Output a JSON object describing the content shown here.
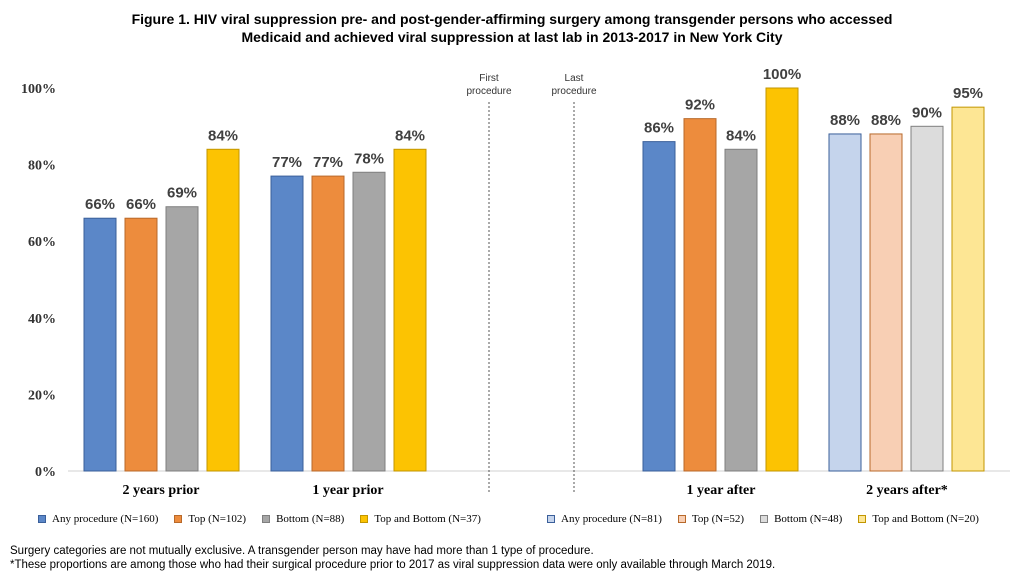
{
  "title_line1": "Figure 1. HIV viral suppression pre- and post-gender-affirming surgery among transgender persons who accessed",
  "title_line2": "Medicaid and achieved viral suppression at last lab in 2013-2017 in New York City",
  "chart_data": {
    "type": "bar",
    "title": "Figure 1. HIV viral suppression pre- and post-gender-affirming surgery among transgender persons who accessed Medicaid and achieved viral suppression at last lab in 2013-2017 in New York City",
    "xlabel": "",
    "ylabel": "",
    "ylim": [
      0,
      100
    ],
    "yticks": [
      "0%",
      "20%",
      "40%",
      "60%",
      "80%",
      "100%"
    ],
    "categories": [
      "2 years prior",
      "1 year prior",
      "1 year after",
      "2 years after*"
    ],
    "series_names": [
      "Any procedure",
      "Top",
      "Bottom",
      "Top and Bottom"
    ],
    "groups": [
      {
        "category": "2 years prior",
        "values": [
          66,
          66,
          69,
          84
        ],
        "labels": [
          "66%",
          "66%",
          "69%",
          "84%"
        ],
        "colors": [
          "#5b87c8",
          "#ed8c3d",
          "#a6a6a6",
          "#fcc302"
        ],
        "borders": [
          "#3a5f9a",
          "#b8692a",
          "#7f7f7f",
          "#c29600"
        ]
      },
      {
        "category": "1 year prior",
        "values": [
          77,
          77,
          78,
          84
        ],
        "labels": [
          "77%",
          "77%",
          "78%",
          "84%"
        ],
        "colors": [
          "#5b87c8",
          "#ed8c3d",
          "#a6a6a6",
          "#fcc302"
        ],
        "borders": [
          "#3a5f9a",
          "#b8692a",
          "#7f7f7f",
          "#c29600"
        ]
      },
      {
        "category": "1 year after",
        "values": [
          86,
          92,
          84,
          100
        ],
        "labels": [
          "86%",
          "92%",
          "84%",
          "100%"
        ],
        "colors": [
          "#5b87c8",
          "#ed8c3d",
          "#a6a6a6",
          "#fcc302"
        ],
        "borders": [
          "#3a5f9a",
          "#b8692a",
          "#7f7f7f",
          "#c29600"
        ]
      },
      {
        "category": "2 years after*",
        "values": [
          88,
          88,
          90,
          95
        ],
        "labels": [
          "88%",
          "88%",
          "90%",
          "95%"
        ],
        "colors": [
          "#c5d4ec",
          "#f8cfb4",
          "#dcdcdc",
          "#fde694"
        ],
        "borders": [
          "#3a5f9a",
          "#b8692a",
          "#7f7f7f",
          "#c29600"
        ]
      }
    ],
    "annotations": [
      {
        "text_line1": "First",
        "text_line2": "procedure"
      },
      {
        "text_line1": "Last",
        "text_line2": "procedure"
      }
    ],
    "legend_left": [
      {
        "label": "Any procedure (N=160)",
        "color": "#5b87c8"
      },
      {
        "label": "Top (N=102)",
        "color": "#ed8c3d"
      },
      {
        "label": "Bottom (N=88)",
        "color": "#a6a6a6"
      },
      {
        "label": "Top and Bottom (N=37)",
        "color": "#fcc302"
      }
    ],
    "legend_right": [
      {
        "label": "Any procedure (N=81)",
        "color": "#c5d4ec"
      },
      {
        "label": "Top (N=52)",
        "color": "#f8cfb4"
      },
      {
        "label": "Bottom (N=48)",
        "color": "#dcdcdc"
      },
      {
        "label": "Top and Bottom (N=20)",
        "color": "#fde694"
      }
    ]
  },
  "footnote1": "Surgery categories are not mutually exclusive. A transgender person may have had more than 1 type of procedure.",
  "footnote2": "*These proportions are among those who had their surgical procedure prior to 2017 as viral suppression data were only available through March 2019."
}
